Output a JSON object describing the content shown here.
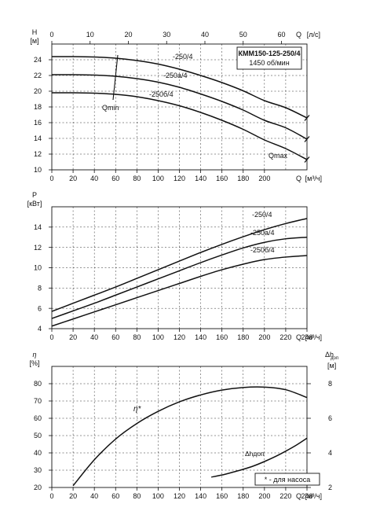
{
  "chart_data": [
    {
      "type": "line",
      "name": "head",
      "ylabel": "H",
      "yunit": "[м]",
      "xlabel": "Q",
      "xunit": "[м³/ч]",
      "top_xlabel": "Q",
      "top_xunit": "[л/с]",
      "xlim": [
        0,
        240
      ],
      "ylim": [
        10,
        26
      ],
      "xticks": [
        0,
        20,
        40,
        60,
        80,
        100,
        120,
        140,
        160,
        180,
        200
      ],
      "yticks": [
        10,
        12,
        14,
        16,
        18,
        20,
        22,
        24
      ],
      "top_xlim": [
        0,
        66.67
      ],
      "top_xticks": [
        0,
        10,
        20,
        30,
        40,
        50,
        60
      ],
      "grid": true,
      "title_box": {
        "line1": "КММ150-125-250/4",
        "line2": "1450 об/мин"
      },
      "series": [
        {
          "name": "-250/4",
          "x": [
            0,
            20,
            40,
            60,
            80,
            100,
            120,
            140,
            160,
            180,
            200,
            220,
            240
          ],
          "y": [
            24.4,
            24.4,
            24.35,
            24.2,
            23.9,
            23.45,
            22.8,
            22.0,
            21.1,
            20.05,
            18.8,
            17.9,
            16.6
          ]
        },
        {
          "name": "-250a/4",
          "x": [
            0,
            20,
            40,
            60,
            80,
            100,
            120,
            140,
            160,
            180,
            200,
            220,
            240
          ],
          "y": [
            22.1,
            22.1,
            22.05,
            21.9,
            21.6,
            21.15,
            20.5,
            19.65,
            18.7,
            17.6,
            16.3,
            15.35,
            13.9
          ]
        },
        {
          "name": "-250б/4",
          "x": [
            0,
            20,
            40,
            60,
            80,
            100,
            120,
            140,
            160,
            180,
            200,
            220,
            240
          ],
          "y": [
            19.8,
            19.8,
            19.75,
            19.6,
            19.3,
            18.8,
            18.15,
            17.3,
            16.3,
            15.15,
            13.8,
            12.7,
            11.3
          ]
        }
      ],
      "annotations": [
        {
          "text": "Qmin",
          "x": 60,
          "y": 18.2
        },
        {
          "text": "Qmax",
          "x": 218,
          "y": 11.8
        }
      ]
    },
    {
      "type": "line",
      "name": "power",
      "ylabel": "P",
      "yunit": "[кВт]",
      "xlabel": "Q",
      "xunit": "[м³/ч]",
      "xlim": [
        0,
        240
      ],
      "ylim": [
        4,
        16
      ],
      "xticks": [
        0,
        20,
        40,
        60,
        80,
        100,
        120,
        140,
        160,
        180,
        200,
        220,
        240
      ],
      "yticks": [
        4,
        6,
        8,
        10,
        12,
        14
      ],
      "grid": true,
      "series": [
        {
          "name": "-250/4",
          "x": [
            0,
            20,
            40,
            60,
            80,
            100,
            120,
            140,
            160,
            180,
            200,
            220,
            240
          ],
          "y": [
            5.7,
            6.5,
            7.3,
            8.1,
            8.95,
            9.8,
            10.65,
            11.5,
            12.3,
            13.05,
            13.75,
            14.35,
            14.85
          ]
        },
        {
          "name": "-250a/4",
          "x": [
            0,
            20,
            40,
            60,
            80,
            100,
            120,
            140,
            160,
            180,
            200,
            220,
            240
          ],
          "y": [
            5.0,
            5.75,
            6.5,
            7.3,
            8.1,
            8.9,
            9.7,
            10.5,
            11.25,
            11.95,
            12.5,
            12.85,
            13.0
          ]
        },
        {
          "name": "-250б/4",
          "x": [
            0,
            20,
            40,
            60,
            80,
            100,
            120,
            140,
            160,
            180,
            200,
            220,
            240
          ],
          "y": [
            4.25,
            4.95,
            5.65,
            6.35,
            7.05,
            7.75,
            8.45,
            9.15,
            9.8,
            10.35,
            10.8,
            11.05,
            11.2
          ]
        }
      ]
    },
    {
      "type": "line",
      "name": "efficiency",
      "ylabel": "η",
      "yunit": "[%]",
      "y2label": "Δh",
      "y2sub": "доп",
      "y2unit": "[м]",
      "xlabel": "Q",
      "xunit": "[м³/ч]",
      "xlim": [
        0,
        240
      ],
      "ylim": [
        20,
        90
      ],
      "y2lim": [
        2,
        9
      ],
      "xticks": [
        0,
        20,
        40,
        60,
        80,
        100,
        120,
        140,
        160,
        180,
        200,
        220,
        240
      ],
      "yticks": [
        20,
        30,
        40,
        50,
        60,
        70,
        80
      ],
      "y2ticks": [
        2,
        4,
        6,
        8
      ],
      "grid": true,
      "series": [
        {
          "name": "η*",
          "axis": "left",
          "x": [
            20,
            40,
            60,
            80,
            100,
            120,
            140,
            160,
            180,
            200,
            220,
            240
          ],
          "y": [
            21,
            36,
            48,
            57,
            64,
            69.5,
            73.5,
            76.3,
            77.8,
            78,
            76.5,
            72
          ]
        },
        {
          "name": "Δhдоп",
          "axis": "right",
          "x": [
            150,
            160,
            170,
            180,
            190,
            200,
            210,
            220,
            230,
            240
          ],
          "y": [
            2.6,
            2.72,
            2.88,
            3.05,
            3.25,
            3.5,
            3.78,
            4.1,
            4.45,
            4.85
          ]
        }
      ],
      "legend_note": "* - для насоса"
    }
  ]
}
